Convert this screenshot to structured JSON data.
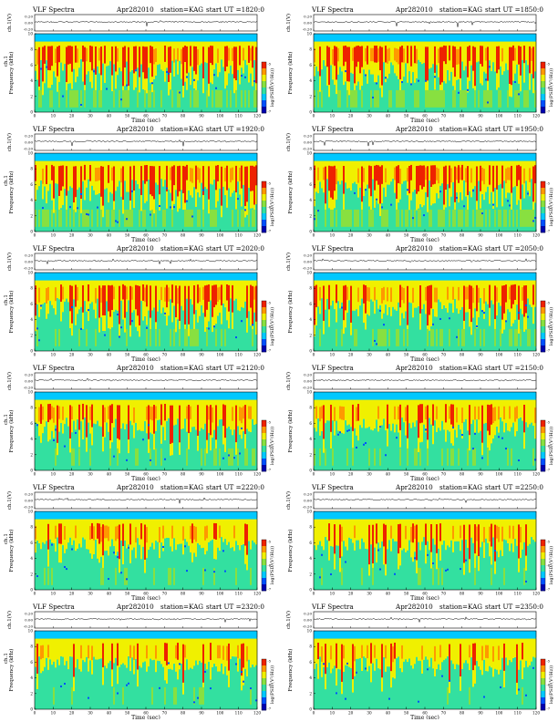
{
  "sheet": {
    "panels": [
      {
        "title": "VLF Spectra",
        "date": "Apr282010",
        "station": "station=KAG",
        "start": "start  UT =1820:0",
        "ylabel_top": "ch.1(V)",
        "ylabel_bottom": "Frequency (kHz)",
        "ylabel_alt": "ch.1",
        "xlabel": "Time (sec)",
        "cbar_label": "log(PSD/(V²/Hz))"
      },
      {
        "title": "VLF Spectra",
        "date": "Apr282010",
        "station": "station=KAG",
        "start": "start  UT =1850:0",
        "ylabel_top": "ch.1(V)",
        "ylabel_bottom": "Frequency (kHz)",
        "ylabel_alt": "",
        "xlabel": "Time (sec)",
        "cbar_label": "log(PSD/(V²/Hz))"
      },
      {
        "title": "VLF Spectra",
        "date": "Apr282010",
        "station": "station=KAG",
        "start": "start  UT =1920:0",
        "ylabel_top": "ch.1(V)",
        "ylabel_bottom": "Frequency (kHz)",
        "ylabel_alt": "ch.1",
        "xlabel": "Time (sec)",
        "cbar_label": "log(PSD/(V²/Hz))"
      },
      {
        "title": "VLF Spectra",
        "date": "Apr282010",
        "station": "station=KAG",
        "start": "start  UT =1950:0",
        "ylabel_top": "ch.1(V)",
        "ylabel_bottom": "Frequency (kHz)",
        "ylabel_alt": "",
        "xlabel": "Time (sec)",
        "cbar_label": "log(PSD/(V²/Hz))"
      },
      {
        "title": "VLF Spectra",
        "date": "Apr282010",
        "station": "station=KAG",
        "start": "start  UT =2020:0",
        "ylabel_top": "ch.1(V)",
        "ylabel_bottom": "Frequency (kHz)",
        "ylabel_alt": "ch.1",
        "xlabel": "Time (sec)",
        "cbar_label": "log(PSD/(V²/Hz))"
      },
      {
        "title": "VLF Spectra",
        "date": "Apr282010",
        "station": "station=KAG",
        "start": "start  UT =2050:0",
        "ylabel_top": "ch.1(V)",
        "ylabel_bottom": "Frequency (kHz)",
        "ylabel_alt": "",
        "xlabel": "Time (sec)",
        "cbar_label": "log(PSD/(V²/Hz))"
      },
      {
        "title": "VLF Spectra",
        "date": "Apr282010",
        "station": "station=KAG",
        "start": "start  UT =2120:0",
        "ylabel_top": "ch.1(V)",
        "ylabel_bottom": "Frequency (kHz)",
        "ylabel_alt": "ch.1",
        "xlabel": "Time (sec)",
        "cbar_label": "log(PSD/(V²/Hz))"
      },
      {
        "title": "VLF Spectra",
        "date": "Apr282010",
        "station": "station=KAG",
        "start": "start  UT =2150:0",
        "ylabel_top": "ch.1(V)",
        "ylabel_bottom": "Frequency (kHz)",
        "ylabel_alt": "",
        "xlabel": "Time (sec)",
        "cbar_label": "log(PSD/(V²/Hz))"
      },
      {
        "title": "VLF Spectra",
        "date": "Apr282010",
        "station": "station=KAG",
        "start": "start  UT =2220:0",
        "ylabel_top": "ch.1(V)",
        "ylabel_bottom": "Frequency (kHz)",
        "ylabel_alt": "ch.1",
        "xlabel": "Time (sec)",
        "cbar_label": "log(PSD/(V²/Hz))"
      },
      {
        "title": "VLF Spectra",
        "date": "Apr282010",
        "station": "station=KAG",
        "start": "start  UT =2250:0",
        "ylabel_top": "ch.1(V)",
        "ylabel_bottom": "Frequency (kHz)",
        "ylabel_alt": "",
        "xlabel": "Time (sec)",
        "cbar_label": "log(PSD/(V²/Hz))"
      },
      {
        "title": "VLF Spectra",
        "date": "Apr282010",
        "station": "station=KAG",
        "start": "start  UT =2320:0",
        "ylabel_top": "ch.1(V)",
        "ylabel_bottom": "Frequency (kHz)",
        "ylabel_alt": "ch.1",
        "xlabel": "Time (sec)",
        "cbar_label": "log(PSD/(V²/Hz))"
      },
      {
        "title": "VLF Spectra",
        "date": "Apr282010",
        "station": "station=KAG",
        "start": "start  UT =2350:0",
        "ylabel_top": "ch.1(V)",
        "ylabel_bottom": "Frequency (kHz)",
        "ylabel_alt": "",
        "xlabel": "Time (sec)",
        "cbar_label": "log(PSD/(V²/Hz))"
      }
    ]
  },
  "colors": {
    "colormap": [
      "#0000b0",
      "#0050ff",
      "#00c8ff",
      "#33e0a0",
      "#88e040",
      "#f0f000",
      "#ff9900",
      "#ee2200"
    ],
    "background_cyan": "#33e0a0",
    "trace": "#000000",
    "frame": "#000000"
  },
  "chart_data": {
    "type": "heatmap",
    "layout": "6 rows x 2 columns of spectrogram panels, each with a small time-series strip on top",
    "x_ticks": [
      0,
      10,
      20,
      30,
      40,
      50,
      60,
      70,
      80,
      90,
      100,
      110,
      120
    ],
    "xlim": [
      0,
      120
    ],
    "xlabel": "Time (sec)",
    "freq_ticks": [
      0,
      2,
      4,
      6,
      8,
      10
    ],
    "ylim_freq": [
      0,
      10
    ],
    "ylabel_freq": "Frequency (kHz)",
    "strip_ticks": [
      "0.20",
      "0.00",
      "-0.20"
    ],
    "ylim_strip": [
      -0.2,
      0.2
    ],
    "ylabel_strip": "ch.1(V)",
    "colorbar": {
      "label": "log(PSD/(V²/Hz))",
      "ticks": [
        "-5",
        "-6",
        "-7"
      ]
    },
    "intensity_profiles": [
      {
        "start": "1820:0",
        "strong": 0.85,
        "low_band": 0.45
      },
      {
        "start": "1850:0",
        "strong": 0.8,
        "low_band": 0.45
      },
      {
        "start": "1920:0",
        "strong": 0.85,
        "low_band": 0.5
      },
      {
        "start": "1950:0",
        "strong": 0.85,
        "low_band": 0.5
      },
      {
        "start": "2020:0",
        "strong": 0.7,
        "low_band": 0.35
      },
      {
        "start": "2050:0",
        "strong": 0.7,
        "low_band": 0.35
      },
      {
        "start": "2120:0",
        "strong": 0.6,
        "low_band": 0.2
      },
      {
        "start": "2150:0",
        "strong": 0.5,
        "low_band": 0.2
      },
      {
        "start": "2220:0",
        "strong": 0.45,
        "low_band": 0.1
      },
      {
        "start": "2250:0",
        "strong": 0.45,
        "low_band": 0.1
      },
      {
        "start": "2320:0",
        "strong": 0.4,
        "low_band": 0.1
      },
      {
        "start": "2350:0",
        "strong": 0.35,
        "low_band": 0.05
      }
    ]
  }
}
